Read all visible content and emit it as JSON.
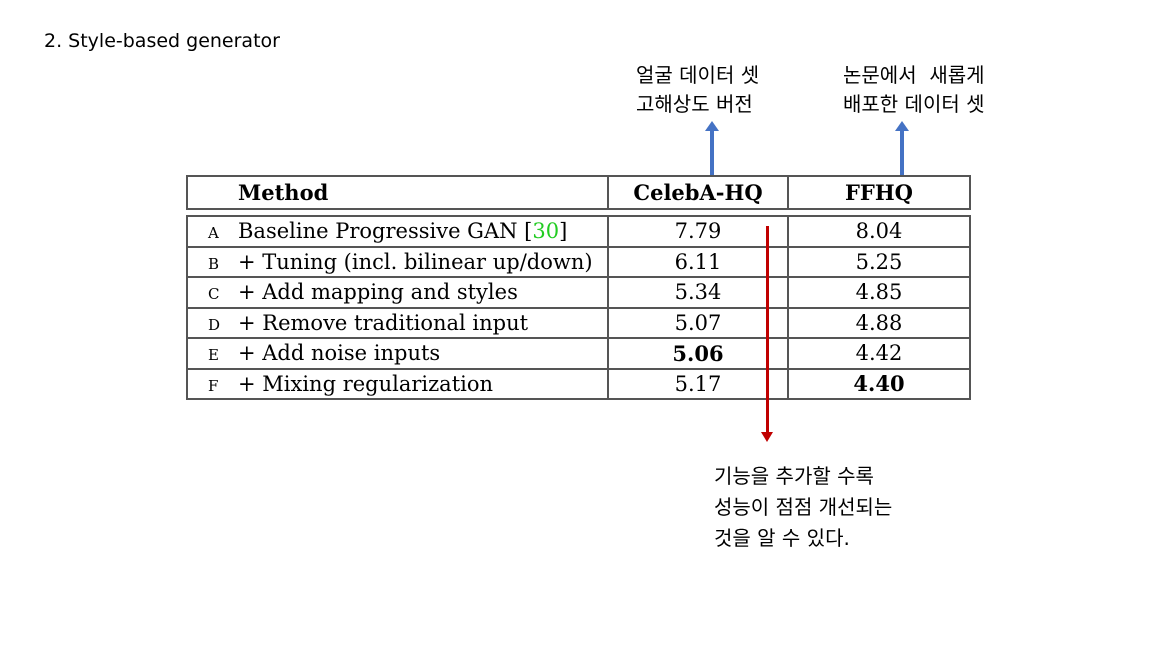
{
  "heading": "2. Style-based generator",
  "notes": {
    "celeba": "얼굴 데이터 셋\n고해상도 버전",
    "ffhq": "논문에서  새롭게\n배포한 데이터 셋",
    "result": "기능을 추가할 수록\n성능이 점점 개선되는\n것을 알 수 있다."
  },
  "table": {
    "headers": [
      "Method",
      "CelebA-HQ",
      "FFHQ"
    ],
    "rows": [
      {
        "letter": "A",
        "method": "Baseline Progressive GAN",
        "cite": "30",
        "celeba": "7.79",
        "ffhq": "8.04"
      },
      {
        "letter": "B",
        "method": "+ Tuning (incl. bilinear up/down)",
        "celeba": "6.11",
        "ffhq": "5.25"
      },
      {
        "letter": "C",
        "method": "+ Add mapping and styles",
        "celeba": "5.34",
        "ffhq": "4.85"
      },
      {
        "letter": "D",
        "method": "+ Remove traditional input",
        "celeba": "5.07",
        "ffhq": "4.88"
      },
      {
        "letter": "E",
        "method": "+ Add noise inputs",
        "celeba": "5.06",
        "ffhq": "4.42"
      },
      {
        "letter": "F",
        "method": "+ Mixing regularization",
        "celeba": "5.17",
        "ffhq": "4.40"
      }
    ]
  },
  "colors": {
    "citation": "#22cc22",
    "annotation_arrow_up": "#4472c4",
    "annotation_arrow_down": "#c00000"
  }
}
